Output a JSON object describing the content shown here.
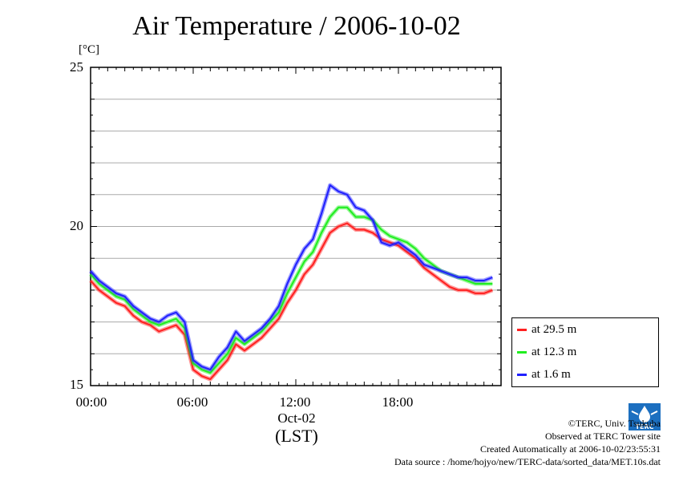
{
  "title": "Air Temperature / 2006-10-02",
  "chart_data": {
    "type": "line",
    "title": "Air Temperature / 2006-10-02",
    "ylabel": "[°C]",
    "xlabel": "(LST)",
    "x_date_label": "Oct-02",
    "ylim": [
      15,
      25
    ],
    "xlim_hours": [
      0,
      24
    ],
    "y_ticks": [
      "25",
      "20",
      "15"
    ],
    "x_ticks": [
      "00:00",
      "06:00",
      "12:00",
      "18:00"
    ],
    "grid": true,
    "legend_position": "bottom-right",
    "series": [
      {
        "name": "at 29.5 m",
        "color": "#ff2020",
        "x": [
          0,
          0.5,
          1,
          1.5,
          2,
          2.5,
          3,
          3.5,
          4,
          4.5,
          5,
          5.5,
          6,
          6.5,
          7,
          7.5,
          8,
          8.5,
          9,
          9.5,
          10,
          10.5,
          11,
          11.5,
          12,
          12.5,
          13,
          13.5,
          14,
          14.5,
          15,
          15.5,
          16,
          16.5,
          17,
          17.5,
          18,
          18.5,
          19,
          19.5,
          20,
          20.5,
          21,
          21.5,
          22,
          22.5,
          23,
          23.5
        ],
        "values": [
          18.3,
          18.0,
          17.8,
          17.6,
          17.5,
          17.2,
          17.0,
          16.9,
          16.7,
          16.8,
          16.9,
          16.6,
          15.5,
          15.3,
          15.2,
          15.5,
          15.8,
          16.3,
          16.1,
          16.3,
          16.5,
          16.8,
          17.1,
          17.6,
          18.0,
          18.5,
          18.8,
          19.3,
          19.8,
          20.0,
          20.1,
          19.9,
          19.9,
          19.8,
          19.6,
          19.5,
          19.4,
          19.2,
          19.0,
          18.7,
          18.5,
          18.3,
          18.1,
          18.0,
          18.0,
          17.9,
          17.9,
          18.0
        ]
      },
      {
        "name": "at 12.3 m",
        "color": "#20ee20",
        "x": [
          0,
          0.5,
          1,
          1.5,
          2,
          2.5,
          3,
          3.5,
          4,
          4.5,
          5,
          5.5,
          6,
          6.5,
          7,
          7.5,
          8,
          8.5,
          9,
          9.5,
          10,
          10.5,
          11,
          11.5,
          12,
          12.5,
          13,
          13.5,
          14,
          14.5,
          15,
          15.5,
          16,
          16.5,
          17,
          17.5,
          18,
          18.5,
          19,
          19.5,
          20,
          20.5,
          21,
          21.5,
          22,
          22.5,
          23,
          23.5
        ],
        "values": [
          18.5,
          18.2,
          18.0,
          17.8,
          17.7,
          17.4,
          17.2,
          17.0,
          16.9,
          17.0,
          17.1,
          16.8,
          15.7,
          15.5,
          15.4,
          15.7,
          16.0,
          16.5,
          16.3,
          16.5,
          16.7,
          17.0,
          17.3,
          17.9,
          18.4,
          18.9,
          19.2,
          19.8,
          20.3,
          20.6,
          20.6,
          20.3,
          20.3,
          20.2,
          19.9,
          19.7,
          19.6,
          19.5,
          19.3,
          19.0,
          18.8,
          18.6,
          18.5,
          18.4,
          18.3,
          18.2,
          18.2,
          18.2
        ]
      },
      {
        "name": "at 1.6 m",
        "color": "#2020ff",
        "x": [
          0,
          0.5,
          1,
          1.5,
          2,
          2.5,
          3,
          3.5,
          4,
          4.5,
          5,
          5.5,
          6,
          6.5,
          7,
          7.5,
          8,
          8.5,
          9,
          9.5,
          10,
          10.5,
          11,
          11.5,
          12,
          12.5,
          13,
          13.5,
          14,
          14.5,
          15,
          15.5,
          16,
          16.5,
          17,
          17.5,
          18,
          18.5,
          19,
          19.5,
          20,
          20.5,
          21,
          21.5,
          22,
          22.5,
          23,
          23.5
        ],
        "values": [
          18.6,
          18.3,
          18.1,
          17.9,
          17.8,
          17.5,
          17.3,
          17.1,
          17.0,
          17.2,
          17.3,
          17.0,
          15.8,
          15.6,
          15.5,
          15.9,
          16.2,
          16.7,
          16.4,
          16.6,
          16.8,
          17.1,
          17.5,
          18.2,
          18.8,
          19.3,
          19.6,
          20.4,
          21.3,
          21.1,
          21.0,
          20.6,
          20.5,
          20.2,
          19.5,
          19.4,
          19.5,
          19.3,
          19.1,
          18.8,
          18.7,
          18.6,
          18.5,
          18.4,
          18.4,
          18.3,
          18.3,
          18.4
        ]
      }
    ]
  },
  "legend": {
    "items": [
      {
        "label": "at 29.5 m",
        "color": "#ff2020"
      },
      {
        "label": "at 12.3 m",
        "color": "#20ee20"
      },
      {
        "label": "at 1.6 m",
        "color": "#2020ff"
      }
    ]
  },
  "credits": {
    "copyright": "©TERC, Univ. Tsukuba",
    "observed": "Observed at TERC Tower site",
    "created": "Created Automatically at 2006-10-02/23:55:31",
    "source": "Data source : /home/hojyo/new/TERC-data/sorted_data/MET.10s.dat"
  },
  "logo_text": "TERC"
}
